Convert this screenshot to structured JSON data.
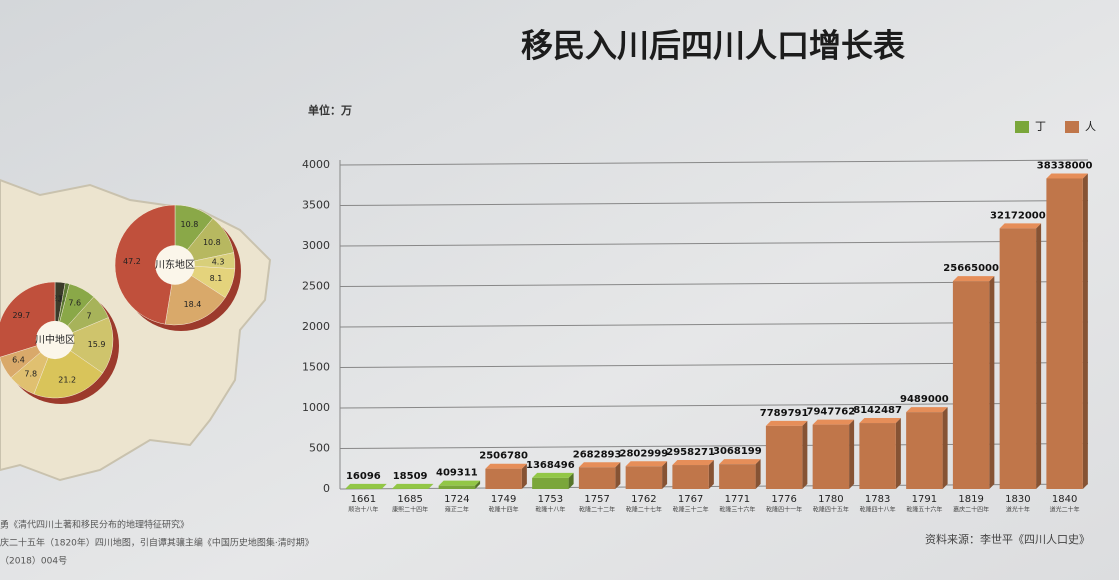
{
  "chart_data": [
    {
      "type": "bar",
      "title": "移民入川后四川人口增长表",
      "y_unit_label": "单位：万",
      "categories": [
        "1661",
        "1685",
        "1724",
        "1749",
        "1753",
        "1757",
        "1762",
        "1767",
        "1771",
        "1776",
        "1780",
        "1783",
        "1791",
        "1819",
        "1830",
        "1840"
      ],
      "category_sublabels": [
        "顺治十八年",
        "康熙二十四年",
        "雍正二年",
        "乾隆十四年",
        "乾隆十八年",
        "乾隆二十二年",
        "乾隆二十七年",
        "乾隆三十二年",
        "乾隆三十六年",
        "乾隆四十一年",
        "乾隆四十五年",
        "乾隆四十八年",
        "乾隆五十六年",
        "嘉庆二十四年",
        "道光十年",
        "道光二十年"
      ],
      "series": [
        {
          "name": "丁",
          "color": "#7aa63a",
          "values": [
            1.6096,
            1.8509,
            40.9311,
            null,
            136.8496,
            null,
            null,
            null,
            null,
            null,
            null,
            null,
            null,
            null,
            null,
            null
          ],
          "value_labels": [
            "16096",
            "18509",
            "409311",
            null,
            "1368496",
            null,
            null,
            null,
            null,
            null,
            null,
            null,
            null,
            null,
            null,
            null
          ]
        },
        {
          "name": "人",
          "color": "#c0764a",
          "values": [
            null,
            null,
            null,
            250.678,
            null,
            268.2893,
            280.2999,
            295.8271,
            306.8199,
            778.9791,
            794.7762,
            814.2487,
            948.9,
            2566.5,
            3217.2,
            3833.8
          ],
          "value_labels": [
            null,
            null,
            null,
            "2506780",
            null,
            "2682893",
            "2802999",
            "2958271",
            "3068199",
            "7789791",
            "7947762",
            "8142487",
            "9489000",
            "25665000",
            "32172000",
            "38338000"
          ]
        }
      ],
      "ylim": [
        0,
        4000
      ],
      "yticks": [
        0,
        500,
        1000,
        1500,
        2000,
        2500,
        3000,
        3500,
        4000
      ],
      "grid": true,
      "legend": "top-right",
      "source": "资料来源：李世平《四川人口史》"
    },
    {
      "type": "pie",
      "title": "川东地区",
      "values": [
        10.8,
        10.8,
        4.3,
        8.1,
        18.4,
        47.2
      ],
      "colors": [
        "#8aa848",
        "#b7b860",
        "#d8cf7a",
        "#e4d37c",
        "#d9a96a",
        "#c0503c"
      ]
    },
    {
      "type": "pie",
      "title": "川中地区",
      "values": [
        2.8,
        1.2,
        7.6,
        7,
        15.9,
        21.2,
        7.8,
        6.4,
        29.7
      ],
      "colors": [
        "#3b3b2a",
        "#5d7a34",
        "#8aa848",
        "#a7b35a",
        "#cfc46c",
        "#d9c45a",
        "#e0c070",
        "#d9a96a",
        "#c0503c"
      ]
    }
  ],
  "notes": [
    "勇《清代四川土著和移民分布的地理特征研究》",
    "庆二十五年（1820年）四川地图，引自谭其骧主编《中国历史地图集·清时期》",
    "（2018）004号"
  ]
}
